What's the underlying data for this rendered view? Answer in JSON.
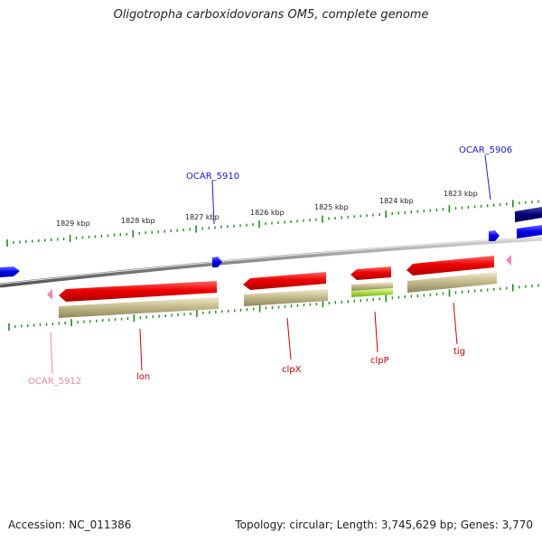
{
  "title": "Oligotropha carboxidovorans OM5, complete genome",
  "footer": {
    "accession": "Accession: NC_011386",
    "topology": "Topology: circular; Length: 3,745,629 bp; Genes: 3,770"
  },
  "scale_ticks": [
    "1829 kbp",
    "1828 kbp",
    "1827 kbp",
    "1826 kbp",
    "1825 kbp",
    "1824 kbp",
    "1823 kbp"
  ],
  "gene_labels": [
    {
      "text": "OCAR_5910",
      "color": "#1a1acc"
    },
    {
      "text": "OCAR_5906",
      "color": "#1a1acc"
    },
    {
      "text": "OCAR_5912",
      "color": "#ee88aa"
    },
    {
      "text": "lon",
      "color": "#cc0000"
    },
    {
      "text": "clpX",
      "color": "#cc0000"
    },
    {
      "text": "clpP",
      "color": "#cc0000"
    },
    {
      "text": "tig",
      "color": "#cc0000"
    }
  ],
  "colors": {
    "backbone": "#8c8c8c",
    "tick": "#1f8a1f",
    "cds_red": "#ee0000",
    "cds_gene_tan": "#c8c08a",
    "cds_lime": "#aadd44",
    "cds_blue": "#0000ee",
    "cds_navy": "#00007a",
    "cds_pink": "#ee88bb"
  }
}
